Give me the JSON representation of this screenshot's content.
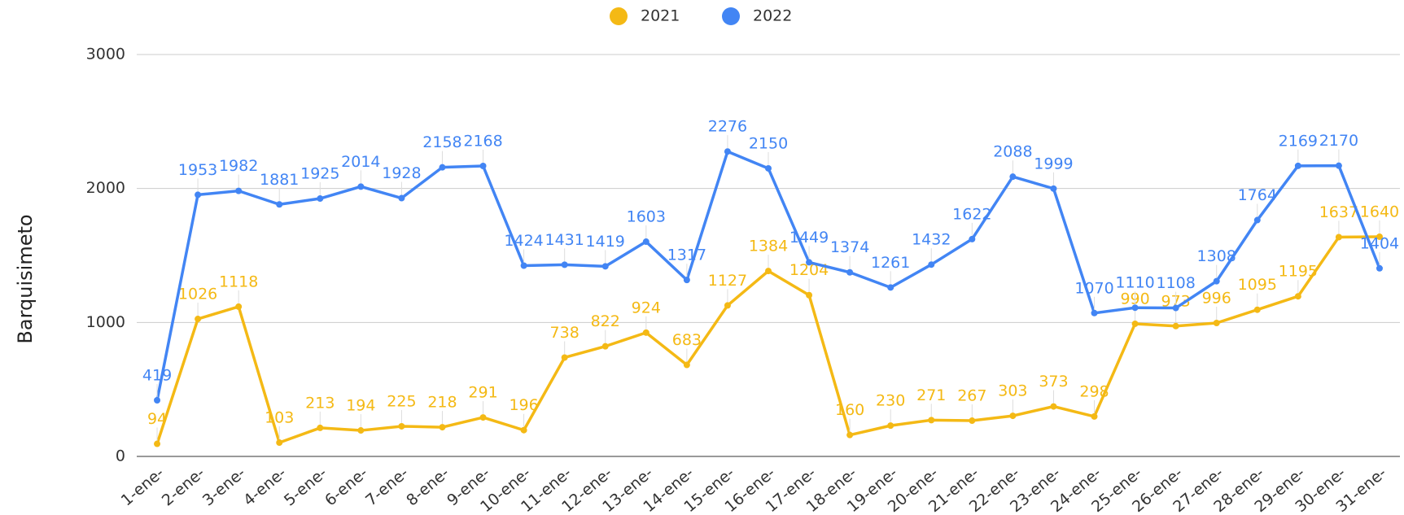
{
  "chart_data": {
    "type": "line",
    "y_label": "Barquisimeto",
    "categories": [
      "1-ene-",
      "2-ene-",
      "3-ene-",
      "4-ene-",
      "5-ene-",
      "6-ene-",
      "7-ene-",
      "8-ene-",
      "9-ene-",
      "10-ene-",
      "11-ene-",
      "12-ene-",
      "13-ene-",
      "14-ene-",
      "15-ene-",
      "16-ene-",
      "17-ene-",
      "18-ene-",
      "19-ene-",
      "20-ene-",
      "21-ene-",
      "22-ene-",
      "23-ene-",
      "24-ene-",
      "25-ene-",
      "26-ene-",
      "27-ene-",
      "28-ene-",
      "29-ene-",
      "30-ene-",
      "31-ene-"
    ],
    "series": [
      {
        "name": "2021",
        "color": "#f4b915",
        "values": [
          94,
          1026,
          1118,
          103,
          213,
          194,
          225,
          218,
          291,
          196,
          738,
          822,
          924,
          683,
          1127,
          1384,
          1204,
          160,
          230,
          271,
          267,
          303,
          373,
          298,
          990,
          973,
          996,
          1095,
          1195,
          1637,
          1640
        ]
      },
      {
        "name": "2022",
        "color": "#4285f4",
        "values": [
          419,
          1953,
          1982,
          1881,
          1925,
          2014,
          1928,
          2158,
          2168,
          1424,
          1431,
          1419,
          1603,
          1317,
          2276,
          2150,
          1449,
          1374,
          1261,
          1432,
          1622,
          2088,
          1999,
          1070,
          1110,
          1108,
          1308,
          1764,
          2169,
          2170,
          1404
        ]
      }
    ],
    "ylim": [
      0,
      3000
    ],
    "yticks": [
      0,
      1000,
      2000,
      3000
    ],
    "grid": true,
    "legend": "top"
  }
}
